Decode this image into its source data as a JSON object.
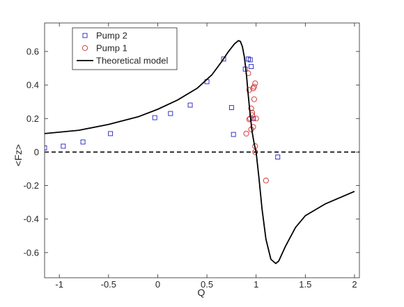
{
  "chart_data": {
    "type": "scatter",
    "title": "",
    "xlabel": "Q",
    "ylabel": "<Fz>",
    "xlim": [
      -1.15,
      2.05
    ],
    "ylim": [
      -0.75,
      0.77
    ],
    "xticks": [
      -1,
      -0.5,
      0,
      0.5,
      1,
      1.5,
      2
    ],
    "xtick_labels": [
      "-1",
      "-0.5",
      "0",
      "0.5",
      "1",
      "1.5",
      "2"
    ],
    "yticks": [
      -0.6,
      -0.4,
      -0.2,
      0,
      0.2,
      0.4,
      0.6
    ],
    "ytick_labels": [
      "-0.6",
      "-0.4",
      "-0.2",
      "0",
      "0.2",
      "0.4",
      "0.6"
    ],
    "grid": false,
    "legend_position": "top-left",
    "series": [
      {
        "name": "Pump 2",
        "kind": "scatter",
        "marker": "square",
        "color": "#1f1fbf",
        "x": [
          -1.15,
          -0.96,
          -0.76,
          -0.48,
          -0.03,
          0.13,
          0.33,
          0.5,
          0.67,
          0.75,
          0.77,
          0.89,
          0.92,
          0.94,
          0.95,
          0.97,
          1.22
        ],
        "y": [
          0.025,
          0.035,
          0.06,
          0.11,
          0.205,
          0.23,
          0.28,
          0.42,
          0.555,
          0.265,
          0.105,
          0.495,
          0.555,
          0.55,
          0.51,
          0.2,
          -0.03
        ]
      },
      {
        "name": "Pump 1",
        "kind": "scatter",
        "marker": "circle",
        "color": "#cc2a2a",
        "x": [
          0.9,
          0.92,
          0.93,
          0.93,
          0.94,
          0.95,
          0.95,
          0.96,
          0.96,
          0.97,
          0.97,
          0.98,
          0.98,
          0.99,
          0.99,
          0.99,
          1.0,
          1.1
        ],
        "y": [
          0.11,
          0.47,
          0.37,
          0.195,
          0.2,
          0.26,
          0.135,
          0.235,
          0.22,
          0.15,
          0.38,
          0.315,
          0.39,
          0.41,
          0.035,
          0.0,
          0.2,
          -0.17
        ]
      },
      {
        "name": "Theoretical model",
        "kind": "line",
        "color": "#000000",
        "x": [
          -1.15,
          -0.8,
          -0.5,
          -0.2,
          0.0,
          0.2,
          0.4,
          0.55,
          0.65,
          0.72,
          0.78,
          0.82,
          0.84,
          0.86,
          0.88,
          0.9,
          0.92,
          0.94,
          0.96,
          0.98,
          1.0,
          1.03,
          1.06,
          1.1,
          1.15,
          1.2,
          1.23,
          1.3,
          1.4,
          1.5,
          1.7,
          2.0
        ],
        "y": [
          0.11,
          0.13,
          0.165,
          0.21,
          0.255,
          0.31,
          0.38,
          0.46,
          0.54,
          0.6,
          0.645,
          0.665,
          0.66,
          0.63,
          0.57,
          0.47,
          0.34,
          0.22,
          0.12,
          0.05,
          0.0,
          -0.16,
          -0.34,
          -0.52,
          -0.64,
          -0.665,
          -0.65,
          -0.56,
          -0.45,
          -0.38,
          -0.31,
          -0.235
        ]
      },
      {
        "name": "",
        "kind": "reference-line",
        "style": "dashed",
        "color": "#000000",
        "x": [
          -1.15,
          2.05
        ],
        "y": [
          0,
          0
        ]
      }
    ]
  }
}
